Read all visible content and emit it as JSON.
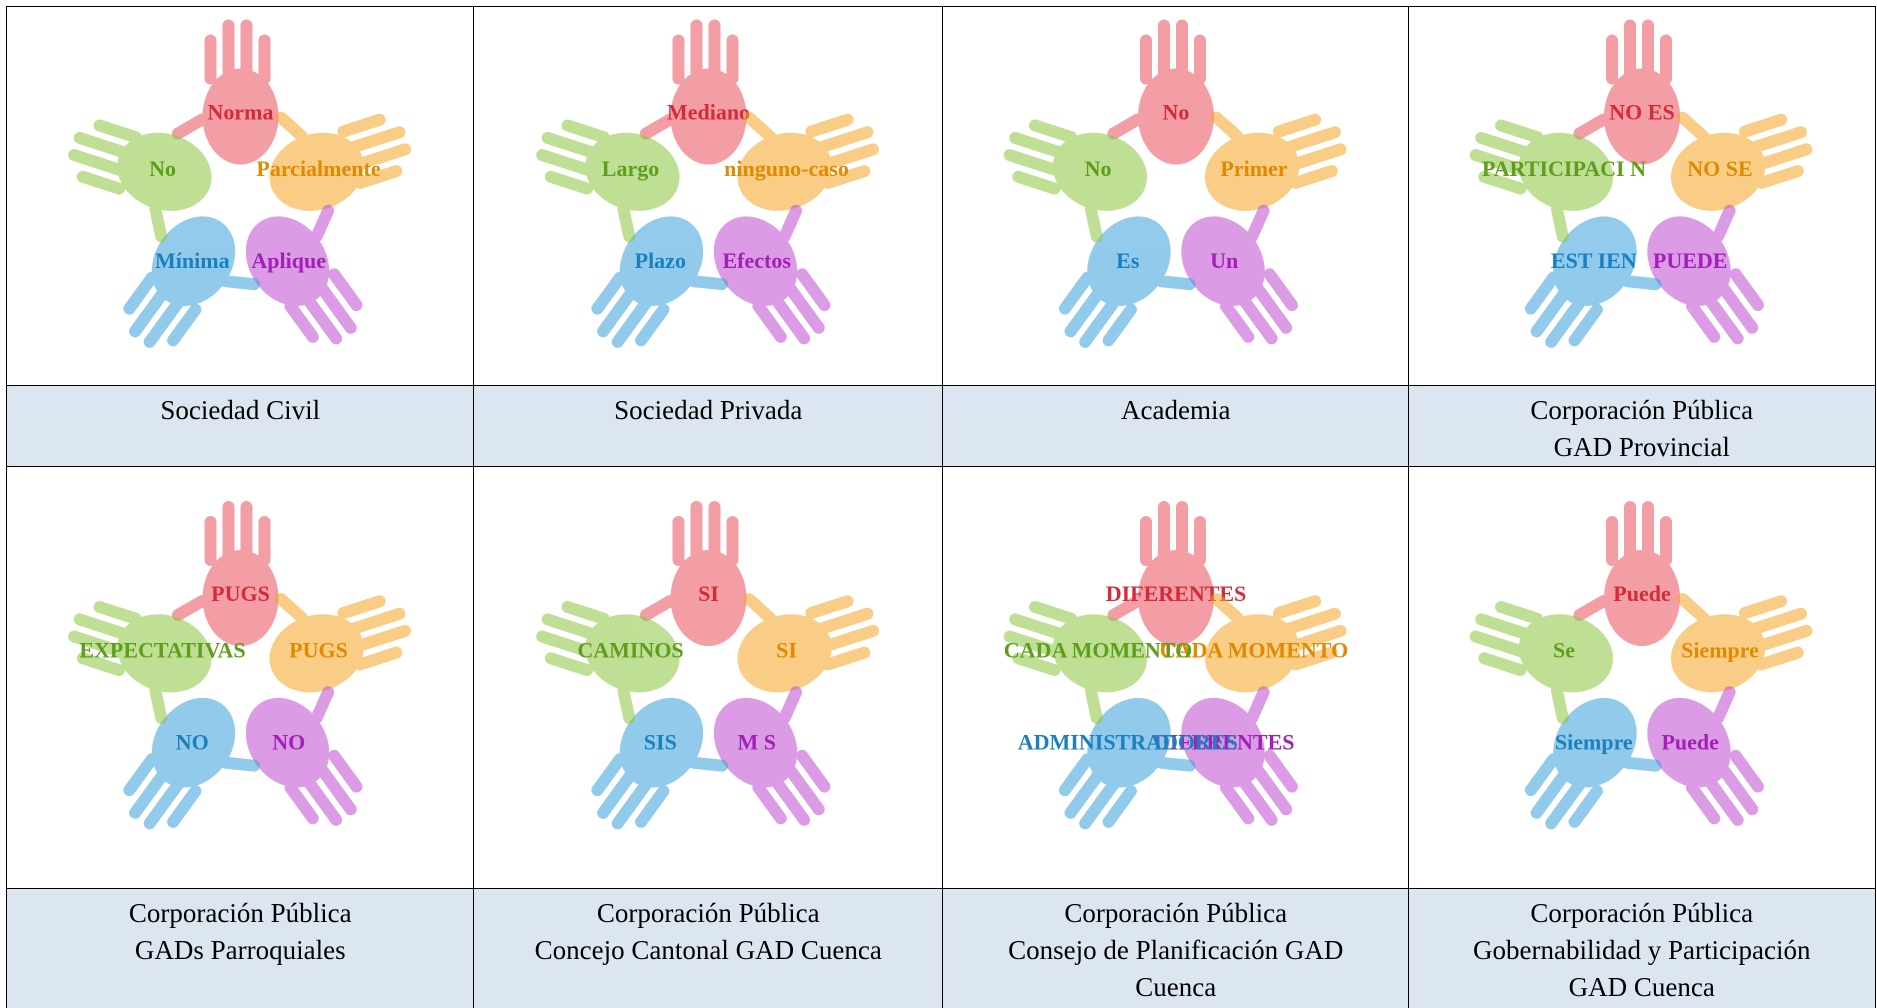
{
  "cells": [
    {
      "caption": [
        "Sociedad Civil"
      ],
      "words": [
        "Norma",
        "Parcialmente",
        "Aplique",
        "Mínima",
        "No"
      ]
    },
    {
      "caption": [
        "Sociedad Privada"
      ],
      "words": [
        "Mediano",
        "ninguno-caso",
        "Efectos",
        "Plazo",
        "Largo"
      ]
    },
    {
      "caption": [
        "Academia"
      ],
      "words": [
        "No",
        "Primer",
        "Un",
        "Es",
        "No"
      ]
    },
    {
      "caption": [
        "Corporación Pública",
        "GAD Provincial"
      ],
      "words": [
        "NO ES",
        "NO SE",
        "PUEDE",
        "EST IEN",
        "PARTICIPACI N"
      ]
    },
    {
      "caption": [
        "Corporación Pública",
        "GADs Parroquiales"
      ],
      "words": [
        "PUGS",
        "PUGS",
        "NO",
        "NO",
        "EXPECTATIVAS"
      ]
    },
    {
      "caption": [
        "Corporación Pública",
        "Concejo Cantonal GAD Cuenca"
      ],
      "words": [
        "SI",
        "SI",
        "M S",
        "SIS",
        "CAMINOS"
      ]
    },
    {
      "caption": [
        "Corporación Pública",
        "Consejo de Planificación GAD",
        "Cuenca"
      ],
      "words": [
        "DIFERENTES",
        "CADA MOMENTO",
        "DIFERENTES",
        "ADMINISTRADORES",
        "CADA MOMENTO"
      ]
    },
    {
      "caption": [
        "Corporación Pública",
        "Gobernabilidad y Participación",
        "GAD Cuenca"
      ],
      "words": [
        "Puede",
        "Siempre",
        "Puede",
        "Siempre",
        "Se"
      ]
    }
  ]
}
